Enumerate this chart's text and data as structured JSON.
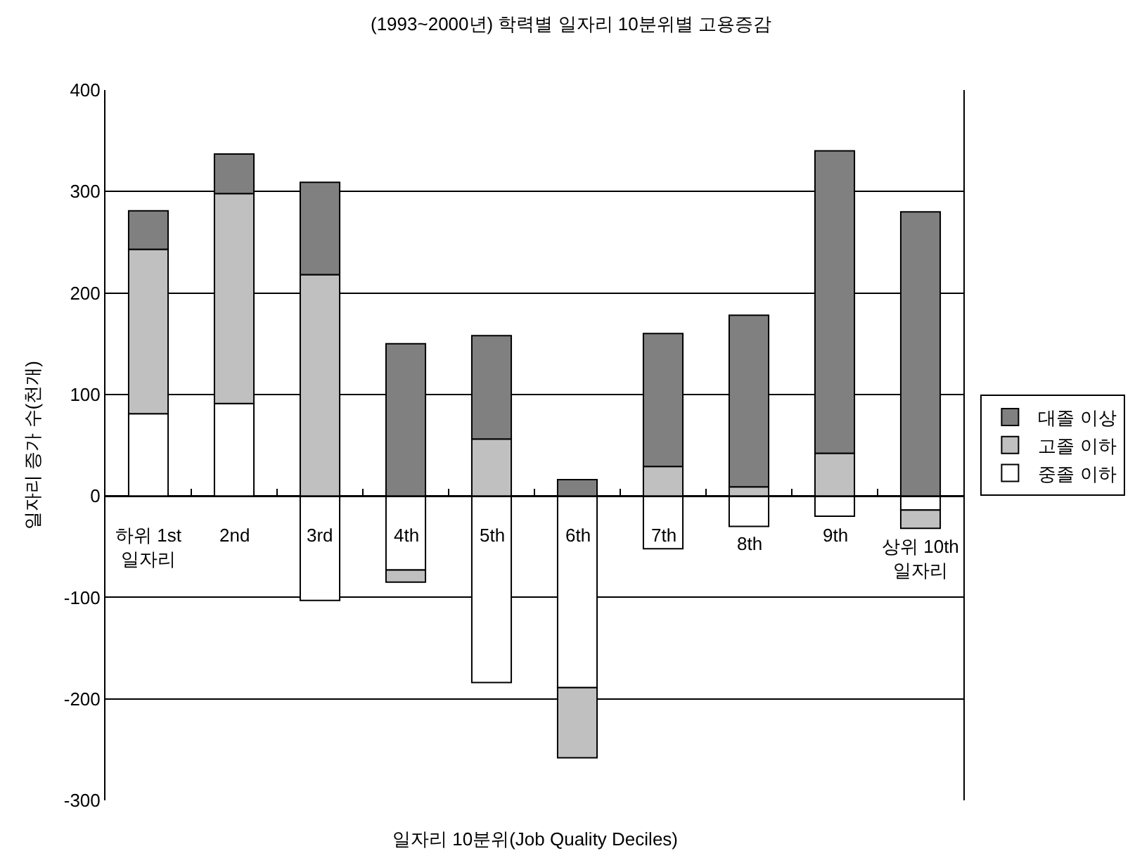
{
  "chart_data": {
    "type": "bar",
    "stacked": true,
    "title": "(1993~2000년) 학력별 일자리 10분위별 고용증감",
    "xlabel": "일자리 10분위(Job Quality Deciles)",
    "ylabel": "일자리 증가 수(천개)",
    "categories": [
      "하위 1st\n일자리",
      "2nd",
      "3rd",
      "4th",
      "5th",
      "6th",
      "7th",
      "8th",
      "9th",
      "상위 10th\n일자리"
    ],
    "series": [
      {
        "name": "중졸 이하",
        "color": "#ffffff",
        "values": [
          81,
          91,
          -103,
          -73,
          -184,
          -189,
          -52,
          -30,
          -20,
          -14
        ]
      },
      {
        "name": "고졸 이하",
        "color": "#c0c0c0",
        "values": [
          162,
          207,
          218,
          -12,
          56,
          -69,
          29,
          9,
          42,
          -18
        ]
      },
      {
        "name": "대졸 이상",
        "color": "#808080",
        "values": [
          38,
          39,
          91,
          150,
          102,
          16,
          131,
          169,
          298,
          280
        ]
      }
    ],
    "ylim": [
      -300,
      400
    ],
    "yticks": [
      -300,
      -200,
      -100,
      0,
      100,
      200,
      300,
      400
    ],
    "grid": "y",
    "legend": "right"
  }
}
